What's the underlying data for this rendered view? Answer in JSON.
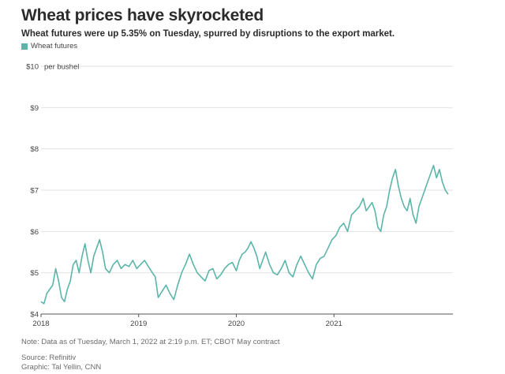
{
  "header": {
    "title": "Wheat prices have skyrocketed",
    "subtitle": "Wheat futures were up 5.35% on Tuesday, spurred by disruptions to the export market."
  },
  "legend": {
    "label": "Wheat futures",
    "color": "#5bb5a9"
  },
  "footer": {
    "note": "Note: Data as of Tuesday, March 1, 2022 at 2:19 p.m. ET; CBOT May contract",
    "source": "Source: Refinitiv",
    "graphic": "Graphic: Tal Yellin, CNN"
  },
  "chart_data": {
    "type": "line",
    "title": "Wheat prices have skyrocketed",
    "ylabel": "per bushel",
    "ylim": [
      4,
      10
    ],
    "xlim": [
      2018.0,
      2022.17
    ],
    "y_ticks": [
      {
        "value": 10,
        "label": "$10"
      },
      {
        "value": 9,
        "label": "$9"
      },
      {
        "value": 8,
        "label": "$8"
      },
      {
        "value": 7,
        "label": "$7"
      },
      {
        "value": 6,
        "label": "$6"
      },
      {
        "value": 5,
        "label": "$5"
      },
      {
        "value": 4,
        "label": "$4"
      }
    ],
    "x_ticks": [
      {
        "value": 2018,
        "label": "2018"
      },
      {
        "value": 2019,
        "label": "2019"
      },
      {
        "value": 2020,
        "label": "2020"
      },
      {
        "value": 2021,
        "label": "2021"
      }
    ],
    "series": [
      {
        "name": "Wheat futures",
        "x": [
          2018.0,
          2018.03,
          2018.06,
          2018.09,
          2018.12,
          2018.15,
          2018.18,
          2018.21,
          2018.24,
          2018.27,
          2018.3,
          2018.33,
          2018.36,
          2018.39,
          2018.42,
          2018.45,
          2018.48,
          2018.51,
          2018.54,
          2018.57,
          2018.6,
          2018.63,
          2018.66,
          2018.7,
          2018.74,
          2018.78,
          2018.82,
          2018.86,
          2018.9,
          2018.94,
          2018.98,
          2019.02,
          2019.06,
          2019.1,
          2019.14,
          2019.17,
          2019.2,
          2019.24,
          2019.28,
          2019.32,
          2019.36,
          2019.4,
          2019.44,
          2019.48,
          2019.52,
          2019.56,
          2019.6,
          2019.64,
          2019.68,
          2019.72,
          2019.76,
          2019.8,
          2019.84,
          2019.88,
          2019.92,
          2019.96,
          2020.0,
          2020.03,
          2020.06,
          2020.09,
          2020.12,
          2020.15,
          2020.18,
          2020.21,
          2020.24,
          2020.27,
          2020.3,
          2020.34,
          2020.38,
          2020.42,
          2020.46,
          2020.5,
          2020.54,
          2020.58,
          2020.62,
          2020.66,
          2020.7,
          2020.74,
          2020.78,
          2020.82,
          2020.86,
          2020.9,
          2020.94,
          2020.98,
          2021.02,
          2021.06,
          2021.1,
          2021.14,
          2021.18,
          2021.22,
          2021.26,
          2021.3,
          2021.33,
          2021.36,
          2021.39,
          2021.42,
          2021.45,
          2021.48,
          2021.51,
          2021.54,
          2021.57,
          2021.6,
          2021.63,
          2021.66,
          2021.69,
          2021.72,
          2021.75,
          2021.78,
          2021.81,
          2021.84,
          2021.87,
          2021.9,
          2021.93,
          2021.96,
          2021.99,
          2022.02,
          2022.05,
          2022.08,
          2022.11,
          2022.14,
          2022.17
        ],
        "values": [
          4.3,
          4.25,
          4.5,
          4.6,
          4.7,
          5.1,
          4.8,
          4.4,
          4.3,
          4.6,
          4.8,
          5.2,
          5.3,
          5.0,
          5.4,
          5.7,
          5.3,
          5.0,
          5.4,
          5.6,
          5.8,
          5.5,
          5.1,
          5.0,
          5.2,
          5.3,
          5.1,
          5.2,
          5.15,
          5.3,
          5.1,
          5.2,
          5.3,
          5.15,
          5.0,
          4.9,
          4.4,
          4.55,
          4.7,
          4.5,
          4.35,
          4.7,
          5.0,
          5.2,
          5.45,
          5.2,
          5.0,
          4.9,
          4.8,
          5.05,
          5.1,
          4.85,
          4.95,
          5.1,
          5.2,
          5.25,
          5.05,
          5.3,
          5.45,
          5.5,
          5.6,
          5.75,
          5.6,
          5.4,
          5.1,
          5.3,
          5.5,
          5.2,
          5.0,
          4.95,
          5.1,
          5.3,
          5.0,
          4.9,
          5.2,
          5.4,
          5.2,
          5.0,
          4.85,
          5.2,
          5.35,
          5.4,
          5.6,
          5.8,
          5.9,
          6.1,
          6.2,
          6.0,
          6.4,
          6.5,
          6.6,
          6.8,
          6.5,
          6.6,
          6.7,
          6.5,
          6.1,
          6.0,
          6.4,
          6.6,
          7.0,
          7.3,
          7.5,
          7.1,
          6.8,
          6.6,
          6.5,
          6.8,
          6.4,
          6.2,
          6.6,
          6.8,
          7.0,
          7.2,
          7.4,
          7.6,
          7.3,
          7.5,
          7.2,
          7.0,
          6.9
        ]
      }
    ]
  }
}
